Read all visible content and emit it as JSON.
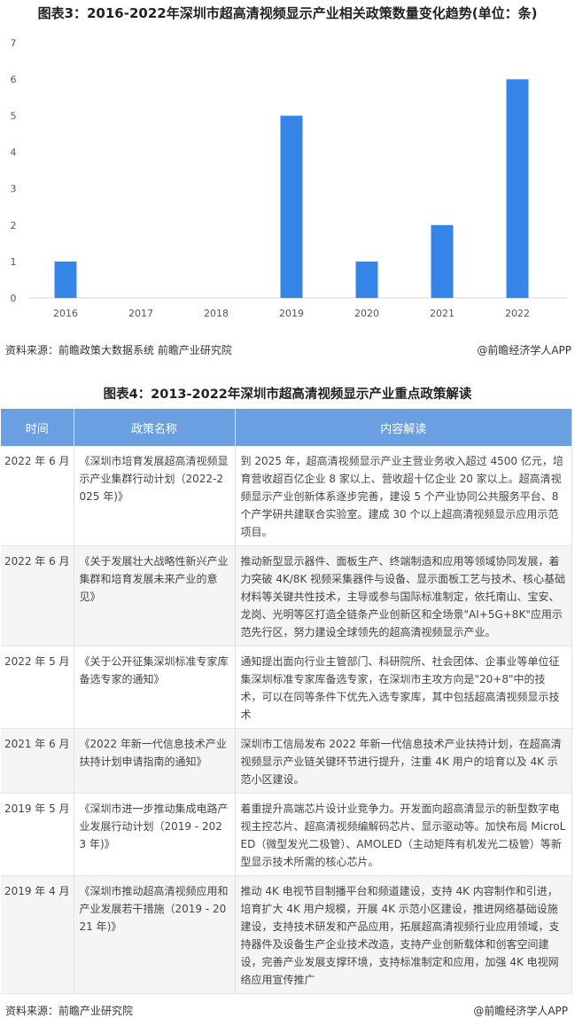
{
  "chart_title": "图表3：2016-2022年深圳市超高清视频显示产业相关政策数量变化趋势(单位：条)",
  "chart_data": {
    "type": "bar",
    "title": "图表3：2016-2022年深圳市超高清视频显示产业相关政策数量变化趋势(单位：条)",
    "categories": [
      "2016",
      "2017",
      "2018",
      "2019",
      "2020",
      "2021",
      "2022"
    ],
    "values": [
      1,
      0,
      0,
      5,
      1,
      2,
      6
    ],
    "yticks": [
      "0",
      "1",
      "2",
      "3",
      "4",
      "5",
      "6",
      "7"
    ],
    "ylim": [
      0,
      7
    ],
    "grid": false,
    "bar_color": "#3585e8"
  },
  "chart_source": "资料来源：前瞻政策大数据系统 前瞻产业研究院",
  "chart_credit": "@前瞻经济学人APP",
  "table_title": "图表4：2013-2022年深圳市超高清视频显示产业重点政策解读",
  "table": {
    "headers": [
      "时间",
      "政策名称",
      "内容解读"
    ],
    "header_color": "#6a9fe2",
    "rows": [
      {
        "time": "2022 年 6 月",
        "name": "《深圳市培育发展超高清视频显示产业集群行动计划（2022-2025 年)》",
        "content": "到 2025 年，超高清视频显示产业主营业务收入超过 4500 亿元，培育营收超百亿企业 8 家以上、营收超十亿企业 20 家以上。超高清视频显示产业创新体系逐步完善，建设 5 个产业协同公共服务平台、8 个产学研共建联合实验室。建成 30 个以上超高清视频显示应用示范项目。"
      },
      {
        "time": "2022 年 6 月",
        "name": "《关于发展壮大战略性新兴产业集群和培育发展未来产业的意见》",
        "content": "推动新型显示器件、面板生产、终端制造和应用等领域协同发展，着力突破 4K/8K 视频采集器件与设备、显示面板工艺与技术、核心基础材料等关键共性技术，主导或参与国际标准制定，依托南山、宝安、龙岗、光明等区打造全链条产业创新区和全场景\"AI+5G+8K\"应用示范先行区，努力建设全球领先的超高清视频显示产业。"
      },
      {
        "time": "2022 年 5 月",
        "name": "《关于公开征集深圳标准专家库备选专家的通知》",
        "content": "通知提出面向行业主管部门、科研院所、社会团体、企事业等单位征集深圳标准专家库备选专家，在深圳市主攻方向是\"20+8\"中的技术，可以在同等条件下优先入选专家库，其中包括超高清视频显示技术"
      },
      {
        "time": "2021 年 6 月",
        "name": "《2022 年新一代信息技术产业扶持计划申请指南的通知》",
        "content": "深圳市工信局发布 2022 年新一代信息技术产业扶持计划，在超高清视频显示产业链关键环节进行提升，注重 4K 用户的培育以及 4K 示范小区建设。"
      },
      {
        "time": "2019 年 5 月",
        "name": "《深圳市进一步推动集成电路产业发展行动计划（2019 - 2023 年)》",
        "content": "着重提升高端芯片设计业竞争力。开发面向超高清显示的新型数字电视主控芯片、超高清视频编解码芯片、显示驱动等。加快布局 MicroLED（微型发光二极管）、AMOLED（主动矩阵有机发光二极管）等新型显示技术所需的核心芯片。"
      },
      {
        "time": "2019 年 4 月",
        "name": "《深圳市推动超高清视频应用和产业发展若干措施（2019 - 2021 年)》",
        "content": "推动 4K 电视节目制播平台和频道建设，支持 4K 内容制作和引进，培育扩大 4K 用户规模，开展 4K 示范小区建设，推进网络基础设施建设，支持技术研发和产品应用，拓展超高清视频行业应用领域，支持器件及设备生产企业技术改造，支持产业创新载体和创客空间建设，完善产业发展支撑环境，支持标准制定和应用，加强 4K 电视网络应用宣传推广"
      }
    ]
  },
  "table_source": "资料来源：前瞻产业研究院",
  "table_credit": "@前瞻经济学人APP"
}
